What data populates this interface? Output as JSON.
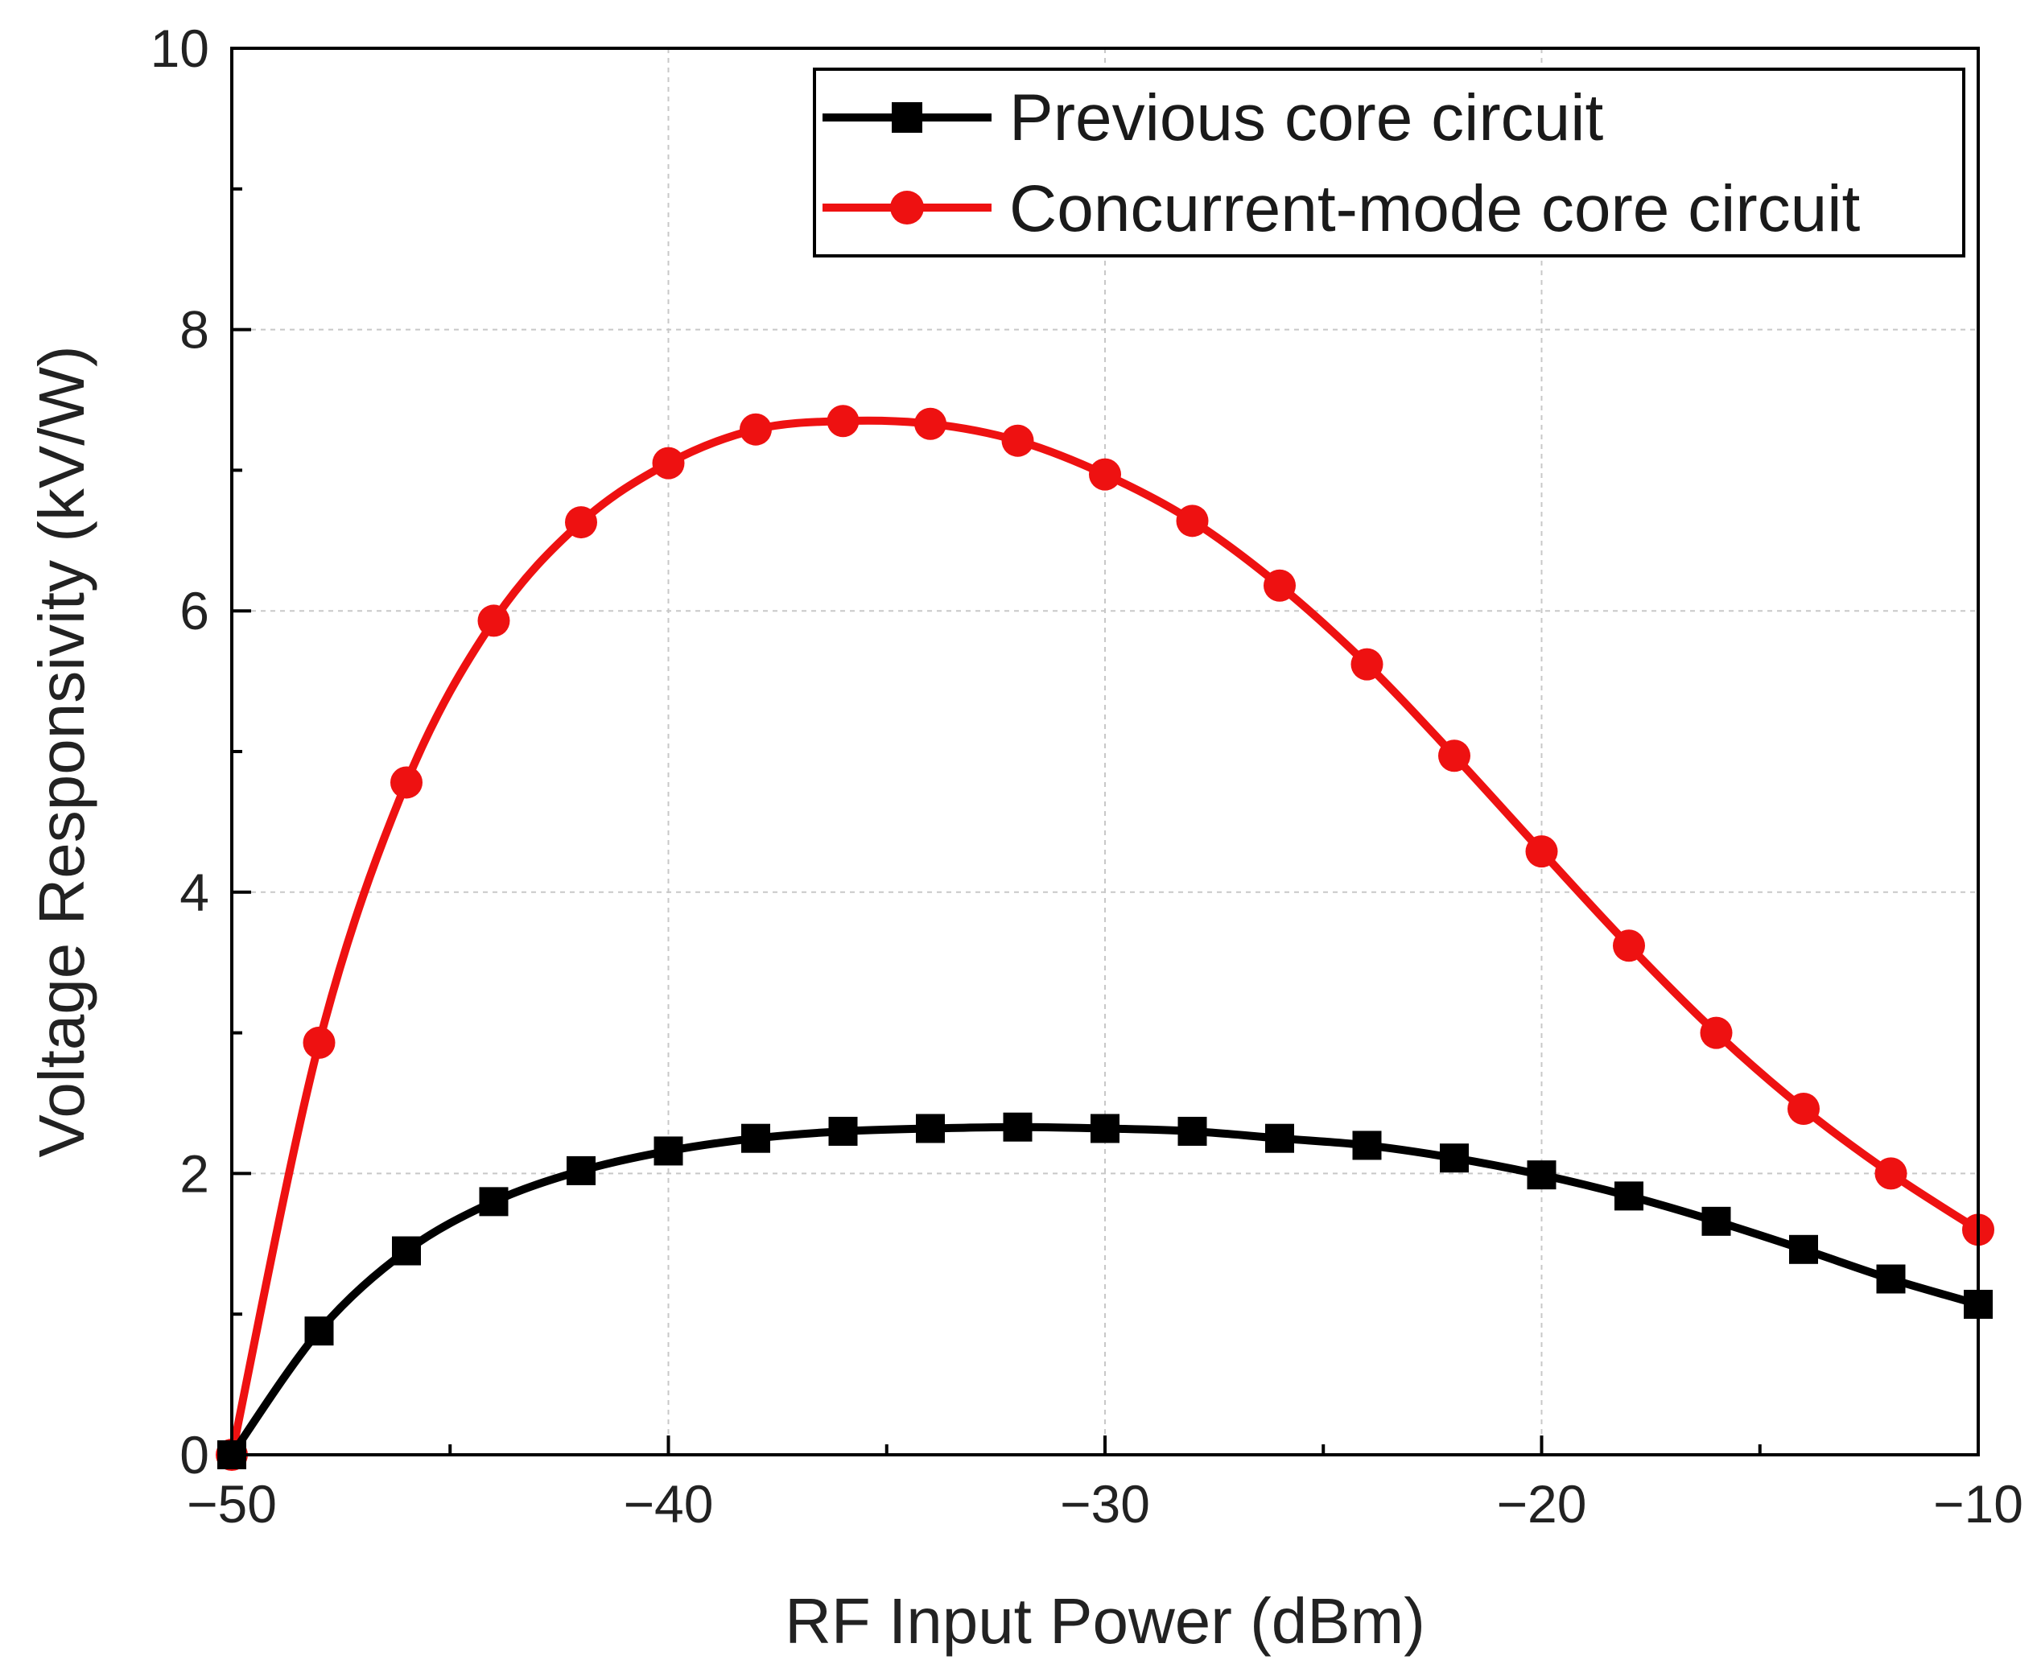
{
  "chart_data": {
    "type": "line",
    "title": "",
    "xlabel": "RF Input Power (dBm)",
    "ylabel": "Voltage Responsivity (kV/W)",
    "xlim": [
      -50,
      -10
    ],
    "ylim": [
      0,
      10
    ],
    "xticks": [
      -50,
      -40,
      -30,
      -20,
      -10
    ],
    "xtick_labels": [
      "−50",
      "−40",
      "−30",
      "−20",
      "−10"
    ],
    "yticks": [
      0,
      2,
      4,
      6,
      8,
      10
    ],
    "ytick_labels": [
      "0",
      "2",
      "4",
      "6",
      "8",
      "10"
    ],
    "grid": true,
    "legend_position": "top-right",
    "x": [
      -50,
      -48,
      -46,
      -44,
      -42,
      -40,
      -38,
      -36,
      -34,
      -32,
      -30,
      -28,
      -26,
      -24,
      -22,
      -20,
      -18,
      -16,
      -14,
      -12,
      -10
    ],
    "series": [
      {
        "name": "Previous core circuit",
        "color": "#000000",
        "marker": "square",
        "values": [
          0.0,
          0.88,
          1.45,
          1.8,
          2.02,
          2.16,
          2.25,
          2.3,
          2.32,
          2.33,
          2.32,
          2.3,
          2.25,
          2.2,
          2.11,
          1.99,
          1.84,
          1.66,
          1.46,
          1.25,
          1.07
        ]
      },
      {
        "name": "Concurrent-mode core circuit",
        "color": "#ee1111",
        "marker": "circle",
        "values": [
          0.0,
          2.93,
          4.78,
          5.93,
          6.63,
          7.05,
          7.29,
          7.35,
          7.33,
          7.21,
          6.97,
          6.64,
          6.18,
          5.62,
          4.97,
          4.29,
          3.62,
          3.0,
          2.46,
          2.0,
          1.6
        ]
      }
    ]
  }
}
